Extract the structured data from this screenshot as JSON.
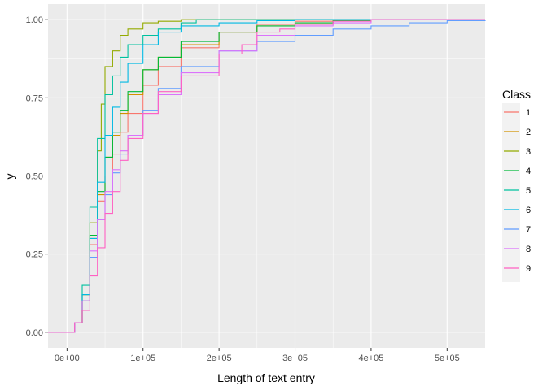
{
  "chart_data": {
    "type": "line",
    "subtype": "ecdf-step",
    "title": "",
    "xlabel": "Length of text entry",
    "ylabel": "y",
    "xlim": [
      -25000,
      550000
    ],
    "ylim": [
      -0.05,
      1.05
    ],
    "x_ticks": [
      0,
      100000,
      200000,
      300000,
      400000,
      500000
    ],
    "x_tick_labels": [
      "0e+00",
      "1e+05",
      "2e+05",
      "3e+05",
      "4e+05",
      "5e+05"
    ],
    "y_ticks": [
      0,
      0.25,
      0.5,
      0.75,
      1.0
    ],
    "y_tick_labels": [
      "0.00",
      "0.25",
      "0.50",
      "0.75",
      "1.00"
    ],
    "grid": true,
    "legend": {
      "title": "Class",
      "position": "right"
    },
    "series": [
      {
        "name": "1",
        "color": "#F8766D",
        "points": [
          [
            -25000,
            0
          ],
          [
            0,
            0
          ],
          [
            10000,
            0.03
          ],
          [
            20000,
            0.1
          ],
          [
            30000,
            0.28
          ],
          [
            40000,
            0.42
          ],
          [
            50000,
            0.5
          ],
          [
            60000,
            0.57
          ],
          [
            70000,
            0.64
          ],
          [
            80000,
            0.7
          ],
          [
            100000,
            0.79
          ],
          [
            120000,
            0.85
          ],
          [
            150000,
            0.91
          ],
          [
            200000,
            0.96
          ],
          [
            250000,
            0.985
          ],
          [
            300000,
            0.995
          ],
          [
            350000,
            1.0
          ],
          [
            550000,
            1.0
          ]
        ]
      },
      {
        "name": "2",
        "color": "#D39200",
        "points": [
          [
            -25000,
            0
          ],
          [
            0,
            0
          ],
          [
            10000,
            0.03
          ],
          [
            20000,
            0.12
          ],
          [
            30000,
            0.3
          ],
          [
            40000,
            0.44
          ],
          [
            50000,
            0.56
          ],
          [
            60000,
            0.63
          ],
          [
            70000,
            0.7
          ],
          [
            80000,
            0.76
          ],
          [
            100000,
            0.84
          ],
          [
            120000,
            0.88
          ],
          [
            150000,
            0.92
          ],
          [
            200000,
            0.96
          ],
          [
            250000,
            0.98
          ],
          [
            300000,
            0.99
          ],
          [
            350000,
            0.997
          ],
          [
            400000,
            1.0
          ],
          [
            550000,
            1.0
          ]
        ]
      },
      {
        "name": "3",
        "color": "#93AA00",
        "points": [
          [
            -25000,
            0
          ],
          [
            0,
            0
          ],
          [
            10000,
            0.03
          ],
          [
            20000,
            0.12
          ],
          [
            30000,
            0.35
          ],
          [
            40000,
            0.58
          ],
          [
            45000,
            0.73
          ],
          [
            50000,
            0.85
          ],
          [
            60000,
            0.9
          ],
          [
            70000,
            0.95
          ],
          [
            80000,
            0.97
          ],
          [
            100000,
            0.99
          ],
          [
            120000,
            0.995
          ],
          [
            150000,
            1.0
          ],
          [
            550000,
            1.0
          ]
        ]
      },
      {
        "name": "4",
        "color": "#00BA38",
        "points": [
          [
            -25000,
            0
          ],
          [
            0,
            0
          ],
          [
            10000,
            0.03
          ],
          [
            20000,
            0.12
          ],
          [
            30000,
            0.31
          ],
          [
            40000,
            0.45
          ],
          [
            50000,
            0.56
          ],
          [
            60000,
            0.64
          ],
          [
            70000,
            0.71
          ],
          [
            80000,
            0.77
          ],
          [
            100000,
            0.84
          ],
          [
            120000,
            0.88
          ],
          [
            150000,
            0.93
          ],
          [
            200000,
            0.96
          ],
          [
            250000,
            0.98
          ],
          [
            300000,
            0.99
          ],
          [
            350000,
            0.997
          ],
          [
            400000,
            1.0
          ],
          [
            550000,
            1.0
          ]
        ]
      },
      {
        "name": "5",
        "color": "#00C19F",
        "points": [
          [
            -25000,
            0
          ],
          [
            0,
            0
          ],
          [
            10000,
            0.03
          ],
          [
            20000,
            0.15
          ],
          [
            30000,
            0.4
          ],
          [
            40000,
            0.62
          ],
          [
            50000,
            0.76
          ],
          [
            60000,
            0.82
          ],
          [
            70000,
            0.88
          ],
          [
            80000,
            0.92
          ],
          [
            100000,
            0.95
          ],
          [
            120000,
            0.97
          ],
          [
            150000,
            0.99
          ],
          [
            170000,
            1.0
          ],
          [
            550000,
            1.0
          ]
        ]
      },
      {
        "name": "6",
        "color": "#00B9E3",
        "points": [
          [
            -25000,
            0
          ],
          [
            0,
            0
          ],
          [
            10000,
            0.03
          ],
          [
            20000,
            0.12
          ],
          [
            30000,
            0.3
          ],
          [
            40000,
            0.48
          ],
          [
            50000,
            0.63
          ],
          [
            60000,
            0.72
          ],
          [
            70000,
            0.8
          ],
          [
            80000,
            0.86
          ],
          [
            100000,
            0.92
          ],
          [
            120000,
            0.96
          ],
          [
            150000,
            0.98
          ],
          [
            200000,
            0.99
          ],
          [
            250000,
            0.997
          ],
          [
            300000,
            1.0
          ],
          [
            550000,
            1.0
          ]
        ]
      },
      {
        "name": "7",
        "color": "#619CFF",
        "points": [
          [
            -25000,
            0
          ],
          [
            0,
            0
          ],
          [
            10000,
            0.03
          ],
          [
            20000,
            0.1
          ],
          [
            30000,
            0.24
          ],
          [
            40000,
            0.36
          ],
          [
            50000,
            0.44
          ],
          [
            60000,
            0.51
          ],
          [
            70000,
            0.57
          ],
          [
            80000,
            0.63
          ],
          [
            100000,
            0.71
          ],
          [
            120000,
            0.78
          ],
          [
            150000,
            0.85
          ],
          [
            200000,
            0.9
          ],
          [
            250000,
            0.93
          ],
          [
            300000,
            0.95
          ],
          [
            350000,
            0.97
          ],
          [
            400000,
            0.98
          ],
          [
            450000,
            0.99
          ],
          [
            500000,
            0.997
          ],
          [
            550000,
            1.0
          ]
        ]
      },
      {
        "name": "8",
        "color": "#DB72FB",
        "points": [
          [
            -25000,
            0
          ],
          [
            0,
            0
          ],
          [
            10000,
            0.03
          ],
          [
            20000,
            0.1
          ],
          [
            30000,
            0.26
          ],
          [
            40000,
            0.36
          ],
          [
            50000,
            0.45
          ],
          [
            60000,
            0.52
          ],
          [
            70000,
            0.58
          ],
          [
            80000,
            0.63
          ],
          [
            100000,
            0.7
          ],
          [
            120000,
            0.76
          ],
          [
            150000,
            0.83
          ],
          [
            200000,
            0.9
          ],
          [
            250000,
            0.95
          ],
          [
            300000,
            0.98
          ],
          [
            350000,
            0.99
          ],
          [
            400000,
            1.0
          ],
          [
            550000,
            1.0
          ]
        ]
      },
      {
        "name": "9",
        "color": "#FF61C3",
        "points": [
          [
            -25000,
            0
          ],
          [
            0,
            0
          ],
          [
            10000,
            0.03
          ],
          [
            20000,
            0.07
          ],
          [
            30000,
            0.18
          ],
          [
            40000,
            0.27
          ],
          [
            50000,
            0.38
          ],
          [
            60000,
            0.45
          ],
          [
            70000,
            0.55
          ],
          [
            80000,
            0.62
          ],
          [
            100000,
            0.7
          ],
          [
            120000,
            0.77
          ],
          [
            150000,
            0.82
          ],
          [
            200000,
            0.89
          ],
          [
            230000,
            0.92
          ],
          [
            250000,
            0.96
          ],
          [
            280000,
            0.97
          ],
          [
            300000,
            0.985
          ],
          [
            350000,
            0.995
          ],
          [
            400000,
            1.0
          ],
          [
            550000,
            1.0
          ]
        ]
      }
    ]
  }
}
